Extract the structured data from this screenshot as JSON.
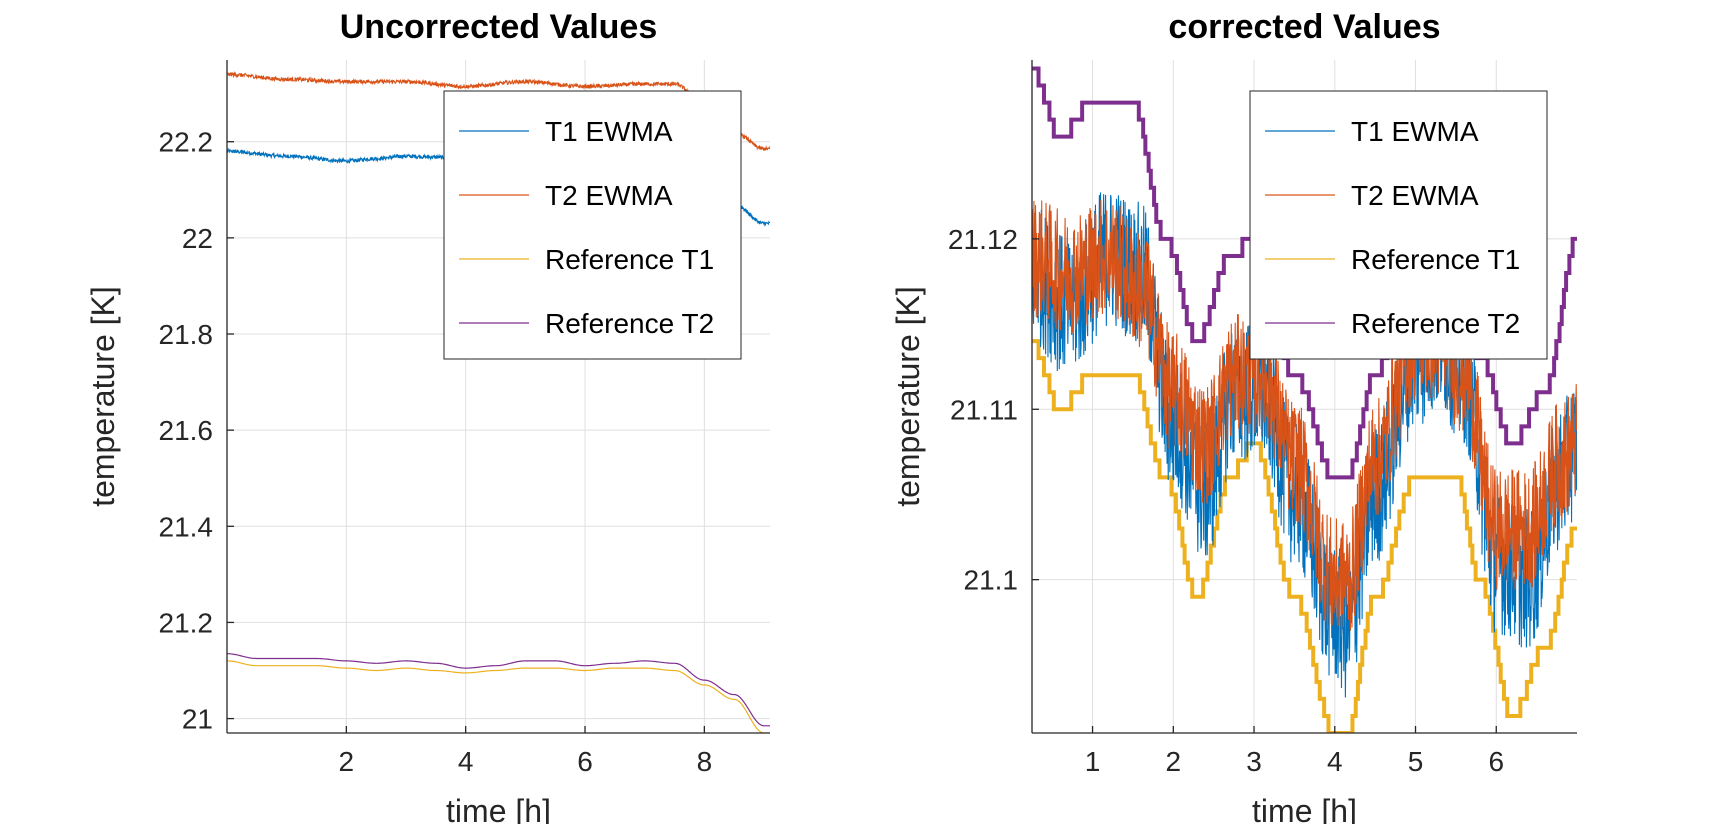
{
  "colors": {
    "t1": "#0072BD",
    "t2": "#D95319",
    "ref1": "#EDB120",
    "ref2": "#7E2F8E",
    "grid": "#dfdfdf",
    "axis": "#262626"
  },
  "chart_data": [
    {
      "type": "line",
      "title": "Uncorrected Values",
      "xlabel": "time [h]",
      "ylabel": "temperature [K]",
      "xlim": [
        0,
        9.1
      ],
      "ylim": [
        20.97,
        22.37
      ],
      "xticks": [
        2,
        4,
        6,
        8
      ],
      "yticks": [
        21,
        21.2,
        21.4,
        21.6,
        21.8,
        22,
        22.2
      ],
      "grid": true,
      "legend_position": "top-right",
      "series": [
        {
          "name": "T1 EWMA",
          "color": "#0072BD",
          "noise": 0.004,
          "x": [
            0,
            1,
            2,
            2.5,
            3,
            3.5,
            4,
            5,
            6,
            7,
            7.5,
            8,
            8.5,
            9,
            9.1
          ],
          "y": [
            22.18,
            22.17,
            22.16,
            22.165,
            22.17,
            22.168,
            22.16,
            22.17,
            22.16,
            22.165,
            22.16,
            22.11,
            22.07,
            22.03,
            22.03
          ]
        },
        {
          "name": "T2 EWMA",
          "color": "#D95319",
          "noise": 0.004,
          "x": [
            0,
            1,
            2,
            3,
            4,
            5,
            6,
            7,
            7.5,
            8,
            8.5,
            9,
            9.1
          ],
          "y": [
            22.34,
            22.33,
            22.325,
            22.325,
            22.315,
            22.325,
            22.315,
            22.32,
            22.32,
            22.28,
            22.22,
            22.185,
            22.185
          ]
        },
        {
          "name": "Reference T1",
          "color": "#EDB120",
          "noise": 0,
          "x": [
            0,
            0.5,
            1,
            1.5,
            2,
            2.5,
            3,
            3.5,
            4,
            4.5,
            5,
            5.5,
            6,
            6.5,
            7,
            7.5,
            8,
            8.5,
            9,
            9.1
          ],
          "y": [
            21.12,
            21.11,
            21.11,
            21.11,
            21.105,
            21.1,
            21.105,
            21.1,
            21.095,
            21.1,
            21.105,
            21.105,
            21.1,
            21.105,
            21.105,
            21.1,
            21.07,
            21.04,
            20.97,
            20.97
          ]
        },
        {
          "name": "Reference T2",
          "color": "#7E2F8E",
          "noise": 0,
          "x": [
            0,
            0.5,
            1,
            1.5,
            2,
            2.5,
            3,
            3.5,
            4,
            4.5,
            5,
            5.5,
            6,
            6.5,
            7,
            7.5,
            8,
            8.5,
            9,
            9.1
          ],
          "y": [
            21.135,
            21.125,
            21.125,
            21.125,
            21.12,
            21.115,
            21.12,
            21.115,
            21.105,
            21.11,
            21.12,
            21.12,
            21.11,
            21.115,
            21.12,
            21.115,
            21.08,
            21.05,
            20.985,
            20.985
          ]
        }
      ]
    },
    {
      "type": "line",
      "title": "corrected Values",
      "xlabel": "time [h]",
      "ylabel": "temperature [K]",
      "xlim": [
        0.25,
        7.0
      ],
      "ylim": [
        21.091,
        21.1305
      ],
      "xticks": [
        1,
        2,
        3,
        4,
        5,
        6
      ],
      "yticks": [
        21.1,
        21.11,
        21.12
      ],
      "grid": true,
      "legend_position": "top-right",
      "series": [
        {
          "name": "T1 EWMA",
          "color": "#0072BD",
          "noise": 0.0042,
          "x": [
            0.25,
            0.7,
            1.2,
            1.6,
            2.0,
            2.4,
            2.75,
            3.1,
            3.5,
            4.0,
            4.15,
            4.5,
            5.0,
            5.3,
            5.6,
            6.0,
            6.4,
            6.8,
            7.0
          ],
          "y": [
            21.118,
            21.116,
            21.119,
            21.118,
            21.109,
            21.105,
            21.111,
            21.111,
            21.105,
            21.098,
            21.097,
            21.105,
            21.113,
            21.114,
            21.112,
            21.101,
            21.1,
            21.106,
            21.108
          ]
        },
        {
          "name": "T2 EWMA",
          "color": "#D95319",
          "noise": 0.0036,
          "x": [
            0.25,
            0.7,
            1.2,
            1.6,
            2.0,
            2.4,
            2.75,
            3.1,
            3.5,
            4.0,
            4.15,
            4.5,
            5.0,
            5.3,
            5.6,
            6.0,
            6.4,
            6.8,
            7.0
          ],
          "y": [
            21.119,
            21.118,
            21.119,
            21.117,
            21.111,
            21.108,
            21.112,
            21.112,
            21.107,
            21.1,
            21.1,
            21.107,
            21.114,
            21.114,
            21.112,
            21.103,
            21.103,
            21.107,
            21.108
          ]
        },
        {
          "name": "Reference T1",
          "color": "#EDB120",
          "noise": 0,
          "step": 0.001,
          "x": [
            0.25,
            0.6,
            1.0,
            1.5,
            1.9,
            2.3,
            2.7,
            3.0,
            3.5,
            4.0,
            4.15,
            4.5,
            5.0,
            5.5,
            5.8,
            6.2,
            6.6,
            7.0
          ],
          "y": [
            21.114,
            21.11,
            21.112,
            21.112,
            21.106,
            21.099,
            21.106,
            21.108,
            21.099,
            21.091,
            21.091,
            21.099,
            21.106,
            21.106,
            21.1,
            21.092,
            21.096,
            21.103
          ]
        },
        {
          "name": "Reference T2",
          "color": "#7E2F8E",
          "noise": 0,
          "step": 0.001,
          "x": [
            0.25,
            0.6,
            1.0,
            1.5,
            1.9,
            2.3,
            2.7,
            3.0,
            3.5,
            4.0,
            4.15,
            4.5,
            5.0,
            5.5,
            5.8,
            6.2,
            6.6,
            7.0
          ],
          "y": [
            21.13,
            21.126,
            21.128,
            21.128,
            21.12,
            21.114,
            21.119,
            21.12,
            21.112,
            21.106,
            21.106,
            21.112,
            21.12,
            21.12,
            21.113,
            21.108,
            21.111,
            21.12
          ]
        }
      ]
    }
  ]
}
